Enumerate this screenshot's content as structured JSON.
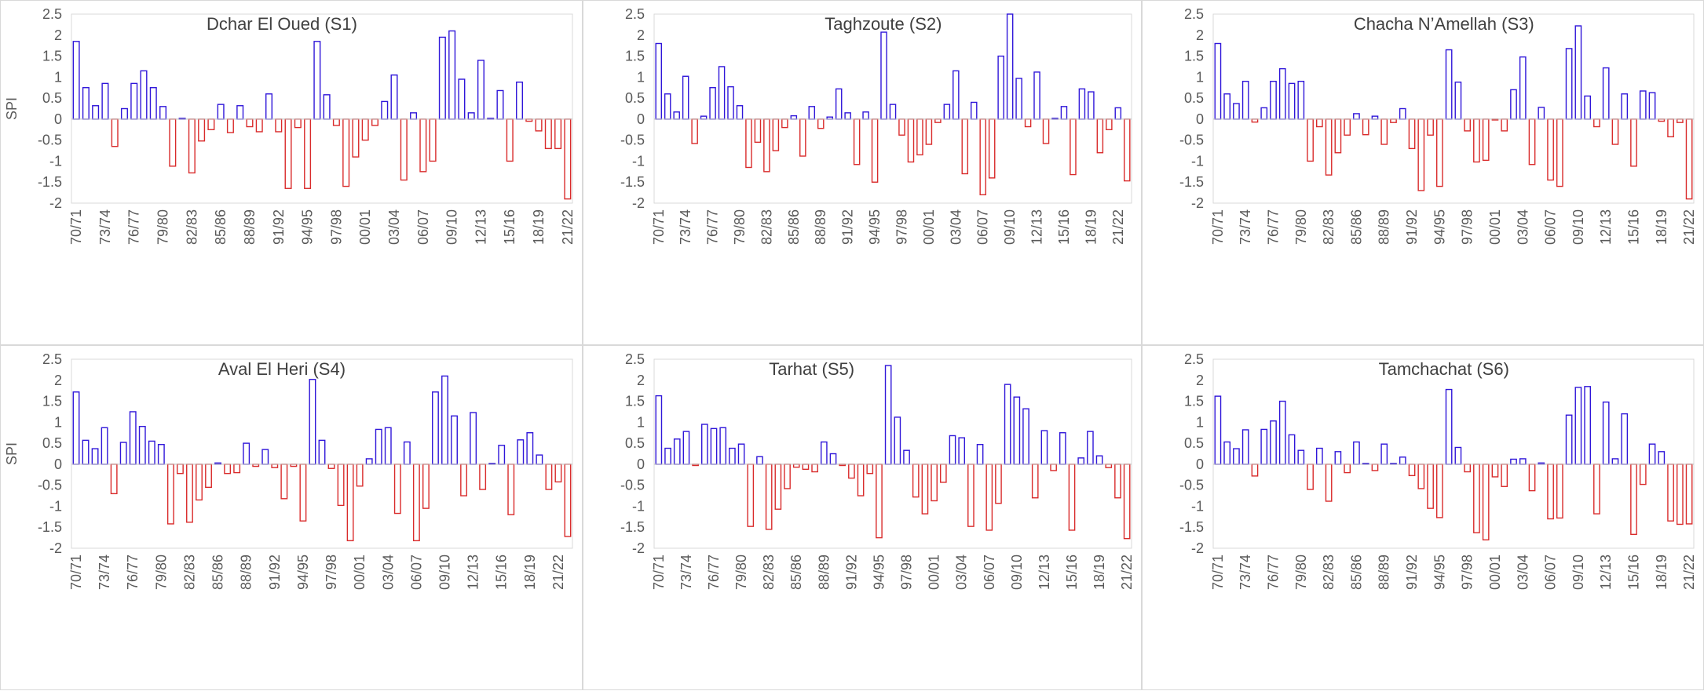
{
  "chart_data": [
    {
      "type": "bar",
      "title": "Dchar El Oued (S1)",
      "ylabel": "SPI",
      "ylim": [
        -2,
        2.5
      ],
      "yticks": [
        "2.5",
        "2",
        "1.5",
        "1",
        "0.5",
        "0",
        "-0.5",
        "-1",
        "-1.5",
        "-2"
      ],
      "tick_labels": [
        "70/71",
        "73/74",
        "76/77",
        "79/80",
        "82/83",
        "85/86",
        "88/89",
        "91/92",
        "94/95",
        "97/98",
        "00/01",
        "03/04",
        "06/07",
        "09/10",
        "12/13",
        "15/16",
        "18/19",
        "21/22"
      ],
      "values": [
        1.85,
        0.75,
        0.32,
        0.85,
        -0.65,
        0.25,
        0.85,
        1.15,
        0.75,
        0.3,
        -1.12,
        0.02,
        -1.28,
        -0.52,
        -0.25,
        0.35,
        -0.32,
        0.32,
        -0.18,
        -0.3,
        0.6,
        -0.3,
        -1.65,
        -0.2,
        -1.65,
        1.85,
        0.58,
        -0.15,
        -1.6,
        -0.9,
        -0.5,
        -0.15,
        0.42,
        1.05,
        -1.45,
        0.15,
        -1.25,
        -1.0,
        1.95,
        2.1,
        0.95,
        0.15,
        1.4,
        0.02,
        0.68,
        -1.0,
        0.88,
        -0.05,
        -0.28,
        -0.7,
        -0.7,
        -1.9
      ]
    },
    {
      "type": "bar",
      "title": "Taghzoute (S2)",
      "ylabel": "",
      "ylim": [
        -2,
        2.5
      ],
      "yticks": [
        "2.5",
        "2",
        "1.5",
        "1",
        "0.5",
        "0",
        "-0.5",
        "-1",
        "-1.5",
        "-2"
      ],
      "tick_labels": [
        "70/71",
        "73/74",
        "76/77",
        "79/80",
        "82/83",
        "85/86",
        "88/89",
        "91/92",
        "94/95",
        "97/98",
        "00/01",
        "03/04",
        "06/07",
        "09/10",
        "12/13",
        "15/16",
        "18/19",
        "21/22"
      ],
      "values": [
        1.8,
        0.6,
        0.17,
        1.02,
        -0.58,
        0.07,
        0.75,
        1.25,
        0.77,
        0.32,
        -1.15,
        -0.55,
        -1.25,
        -0.75,
        -0.2,
        0.08,
        -0.88,
        0.3,
        -0.22,
        0.05,
        0.72,
        0.15,
        -1.08,
        0.17,
        -1.5,
        2.07,
        0.35,
        -0.38,
        -1.02,
        -0.85,
        -0.6,
        -0.08,
        0.35,
        1.15,
        -1.3,
        0.4,
        -1.8,
        -1.4,
        1.5,
        2.5,
        0.97,
        -0.18,
        1.12,
        -0.58,
        0.02,
        0.3,
        -1.32,
        0.72,
        0.65,
        -0.8,
        -0.25,
        0.27,
        -1.47
      ]
    },
    {
      "type": "bar",
      "title": "Chacha N’Amellah (S3)",
      "ylabel": "",
      "ylim": [
        -2,
        2.5
      ],
      "yticks": [
        "2.5",
        "2",
        "1.5",
        "1",
        "0.5",
        "0",
        "-0.5",
        "-1",
        "-1.5",
        "-2"
      ],
      "tick_labels": [
        "70/71",
        "73/74",
        "76/77",
        "79/80",
        "82/83",
        "85/86",
        "88/89",
        "91/92",
        "94/95",
        "97/98",
        "00/01",
        "03/04",
        "06/07",
        "09/10",
        "12/13",
        "15/16",
        "18/19",
        "21/22"
      ],
      "values": [
        1.8,
        0.6,
        0.37,
        0.9,
        -0.07,
        0.27,
        0.9,
        1.2,
        0.85,
        0.9,
        -1.0,
        -0.18,
        -1.33,
        -0.8,
        -0.38,
        0.13,
        -0.37,
        0.07,
        -0.6,
        -0.08,
        0.25,
        -0.7,
        -1.7,
        -0.38,
        -1.6,
        1.65,
        0.88,
        -0.28,
        -1.02,
        -0.98,
        -0.02,
        -0.28,
        0.7,
        1.48,
        -1.08,
        0.28,
        -1.45,
        -1.6,
        1.68,
        2.22,
        0.55,
        -0.18,
        1.22,
        -0.6,
        0.6,
        -1.12,
        0.67,
        0.63,
        -0.05,
        -0.42,
        -0.08,
        -1.9
      ]
    },
    {
      "type": "bar",
      "title": "Aval El Heri (S4)",
      "ylabel": "SPI",
      "ylim": [
        -2,
        2.5
      ],
      "yticks": [
        "2.5",
        "2",
        "1.5",
        "1",
        "0.5",
        "0",
        "-0.5",
        "-1",
        "-1.5",
        "-2"
      ],
      "tick_labels": [
        "70/71",
        "73/74",
        "76/77",
        "79/80",
        "82/83",
        "85/86",
        "88/89",
        "91/92",
        "94/95",
        "97/98",
        "00/01",
        "03/04",
        "06/07",
        "09/10",
        "12/13",
        "15/16",
        "18/19",
        "21/22"
      ],
      "values": [
        1.72,
        0.57,
        0.37,
        0.87,
        -0.7,
        0.52,
        1.25,
        0.9,
        0.55,
        0.47,
        -1.42,
        -0.22,
        -1.38,
        -0.85,
        -0.55,
        0.03,
        -0.22,
        -0.2,
        0.5,
        -0.05,
        0.35,
        -0.08,
        -0.82,
        -0.05,
        -1.35,
        2.02,
        0.57,
        -0.1,
        -0.98,
        -1.82,
        -0.52,
        0.13,
        0.83,
        0.87,
        -1.17,
        0.53,
        -1.82,
        -1.05,
        1.72,
        2.1,
        1.15,
        -0.75,
        1.23,
        -0.6,
        0.02,
        0.45,
        -1.2,
        0.58,
        0.75,
        0.22,
        -0.6,
        -0.42,
        -1.72
      ]
    },
    {
      "type": "bar",
      "title": "Tarhat (S5)",
      "ylabel": "",
      "ylim": [
        -2,
        2.5
      ],
      "yticks": [
        "2.5",
        "2",
        "1.5",
        "1",
        "0.5",
        "0",
        "-0.5",
        "-1",
        "-1.5",
        "-2"
      ],
      "tick_labels": [
        "70/71",
        "73/74",
        "76/77",
        "79/80",
        "82/83",
        "85/86",
        "88/89",
        "91/92",
        "94/95",
        "97/98",
        "00/01",
        "03/04",
        "06/07",
        "09/10",
        "12/13",
        "15/16",
        "18/19",
        "21/22"
      ],
      "values": [
        1.63,
        0.38,
        0.6,
        0.78,
        -0.03,
        0.95,
        0.85,
        0.87,
        0.38,
        0.48,
        -1.48,
        0.18,
        -1.55,
        -1.07,
        -0.58,
        -0.07,
        -0.12,
        -0.18,
        0.53,
        0.25,
        -0.03,
        -0.33,
        -0.75,
        -0.22,
        -1.75,
        2.35,
        1.12,
        0.33,
        -0.78,
        -1.18,
        -0.87,
        -0.43,
        0.68,
        0.63,
        -1.48,
        0.47,
        -1.57,
        -0.93,
        1.9,
        1.6,
        1.32,
        -0.8,
        0.8,
        -0.15,
        0.75,
        -1.57,
        0.15,
        0.78,
        0.2,
        -0.08,
        -0.8,
        -1.77
      ]
    },
    {
      "type": "bar",
      "title": "Tamchachat (S6)",
      "ylabel": "",
      "ylim": [
        -2,
        2.5
      ],
      "yticks": [
        "2.5",
        "2",
        "1.5",
        "1",
        "0.5",
        "0",
        "-0.5",
        "-1",
        "-1.5",
        "-2"
      ],
      "tick_labels": [
        "70/71",
        "73/74",
        "76/77",
        "79/80",
        "82/83",
        "85/86",
        "88/89",
        "91/92",
        "94/95",
        "97/98",
        "00/01",
        "03/04",
        "06/07",
        "09/10",
        "12/13",
        "15/16",
        "18/19",
        "21/22"
      ],
      "values": [
        1.62,
        0.53,
        0.37,
        0.82,
        -0.28,
        0.83,
        1.03,
        1.5,
        0.7,
        0.33,
        -0.6,
        0.38,
        -0.88,
        0.3,
        -0.2,
        0.53,
        0.02,
        -0.15,
        0.48,
        0.02,
        0.17,
        -0.27,
        -0.58,
        -1.05,
        -1.27,
        1.78,
        0.4,
        -0.18,
        -1.63,
        -1.8,
        -0.3,
        -0.53,
        0.12,
        0.13,
        -0.63,
        0.03,
        -1.3,
        -1.28,
        1.17,
        1.83,
        1.85,
        -1.18,
        1.48,
        0.13,
        1.2,
        -1.67,
        -0.48,
        0.48,
        0.3,
        -1.35,
        -1.43,
        -1.42
      ]
    }
  ]
}
